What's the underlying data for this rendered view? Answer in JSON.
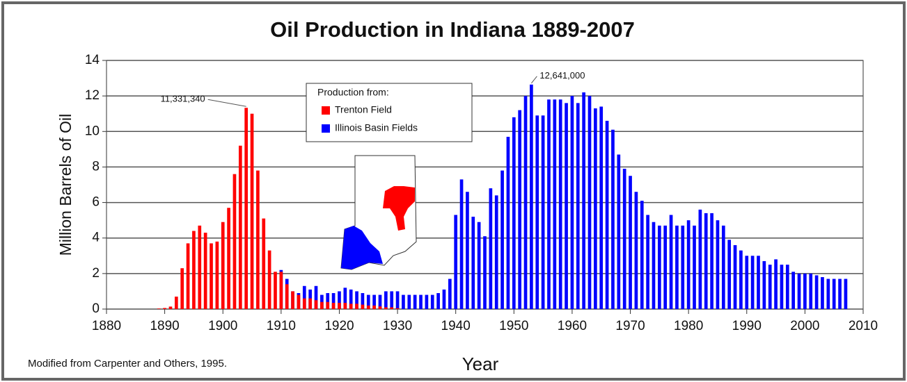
{
  "chart_data": {
    "type": "bar",
    "title": "Oil Production in Indiana 1889-2007",
    "x_label": "Year",
    "y_label": "Million Barrels of Oil",
    "source": "Modified from Carpenter and Others, 1995.",
    "legend_title": "Production from:",
    "legend": "top",
    "grid": true,
    "xlim": [
      1880,
      2010
    ],
    "xticks": [
      1880,
      1890,
      1900,
      1910,
      1920,
      1930,
      1940,
      1950,
      1960,
      1970,
      1980,
      1990,
      2000,
      2010
    ],
    "ylim": [
      0,
      14
    ],
    "yticks": [
      0,
      2,
      4,
      6,
      8,
      10,
      12,
      14
    ],
    "series": [
      {
        "name": "Illinois Basin Fields",
        "color": "#0000ff",
        "x": [
          1910,
          1911,
          1912,
          1913,
          1914,
          1915,
          1916,
          1917,
          1918,
          1919,
          1920,
          1921,
          1922,
          1923,
          1924,
          1925,
          1926,
          1927,
          1928,
          1929,
          1930,
          1931,
          1932,
          1933,
          1934,
          1935,
          1936,
          1937,
          1938,
          1939,
          1940,
          1941,
          1942,
          1943,
          1944,
          1945,
          1946,
          1947,
          1948,
          1949,
          1950,
          1951,
          1952,
          1953,
          1954,
          1955,
          1956,
          1957,
          1958,
          1959,
          1960,
          1961,
          1962,
          1963,
          1964,
          1965,
          1966,
          1967,
          1968,
          1969,
          1970,
          1971,
          1972,
          1973,
          1974,
          1975,
          1976,
          1977,
          1978,
          1979,
          1980,
          1981,
          1982,
          1983,
          1984,
          1985,
          1986,
          1987,
          1988,
          1989,
          1990,
          1991,
          1992,
          1993,
          1994,
          1995,
          1996,
          1997,
          1998,
          1999,
          2000,
          2001,
          2002,
          2003,
          2004,
          2005,
          2006,
          2007
        ],
        "values": [
          2.2,
          1.7,
          1.0,
          0.9,
          1.3,
          1.1,
          1.3,
          0.8,
          0.9,
          0.9,
          1.0,
          1.2,
          1.1,
          1.0,
          0.9,
          0.8,
          0.8,
          0.8,
          1.0,
          1.0,
          1.0,
          0.8,
          0.8,
          0.8,
          0.8,
          0.8,
          0.8,
          0.9,
          1.1,
          1.7,
          5.3,
          7.3,
          6.6,
          5.2,
          4.9,
          4.1,
          6.8,
          6.4,
          7.8,
          9.7,
          10.8,
          11.2,
          12.0,
          12.641,
          10.9,
          10.9,
          11.8,
          11.8,
          11.8,
          11.6,
          12.0,
          11.6,
          12.2,
          12.0,
          11.3,
          11.4,
          10.6,
          10.1,
          8.7,
          7.9,
          7.5,
          6.6,
          6.1,
          5.3,
          4.9,
          4.7,
          4.7,
          5.3,
          4.7,
          4.7,
          5.0,
          4.7,
          5.6,
          5.4,
          5.4,
          5.0,
          4.7,
          3.9,
          3.6,
          3.3,
          3.0,
          3.0,
          3.0,
          2.7,
          2.5,
          2.8,
          2.5,
          2.5,
          2.1,
          2.0,
          2.0,
          2.0,
          1.9,
          1.8,
          1.7,
          1.7,
          1.7,
          1.7
        ],
        "value_labels": [
          null,
          null,
          null,
          null,
          null,
          null,
          null,
          null,
          null,
          null,
          null,
          null,
          null,
          null,
          null,
          null,
          null,
          null,
          null,
          null,
          null,
          null,
          null,
          null,
          null,
          null,
          null,
          null,
          null,
          null,
          null,
          null,
          null,
          null,
          null,
          null,
          null,
          null,
          null,
          null,
          null,
          null,
          null,
          "12,641,000",
          null,
          null,
          null,
          null,
          null,
          null,
          null,
          null,
          null,
          null,
          null,
          null,
          null,
          null,
          null,
          null,
          null,
          null,
          null,
          null,
          null,
          null,
          null,
          null,
          null,
          null,
          null,
          null,
          null,
          null,
          null,
          null,
          null,
          null,
          null,
          null,
          null,
          null,
          null,
          null,
          null,
          null,
          null,
          null,
          null,
          null,
          null,
          null,
          null,
          null,
          null,
          null,
          null,
          null
        ]
      },
      {
        "name": "Trenton Field",
        "color": "#ff0000",
        "x": [
          1889,
          1890,
          1891,
          1892,
          1893,
          1894,
          1895,
          1896,
          1897,
          1898,
          1899,
          1900,
          1901,
          1902,
          1903,
          1904,
          1905,
          1906,
          1907,
          1908,
          1909,
          1910,
          1911,
          1912,
          1913,
          1914,
          1915,
          1916,
          1917,
          1918,
          1919,
          1920,
          1921,
          1922,
          1923,
          1924,
          1925,
          1926,
          1927,
          1928,
          1929,
          1930
        ],
        "values": [
          0.03,
          0.06,
          0.14,
          0.7,
          2.3,
          3.7,
          4.4,
          4.7,
          4.3,
          3.7,
          3.8,
          4.9,
          5.7,
          7.6,
          9.2,
          11.33134,
          11.0,
          7.8,
          5.1,
          3.3,
          2.1,
          2.1,
          1.4,
          1.0,
          0.8,
          0.6,
          0.6,
          0.5,
          0.4,
          0.4,
          0.35,
          0.35,
          0.35,
          0.3,
          0.3,
          0.25,
          0.2,
          0.2,
          0.15,
          0.1,
          0.1,
          0.05
        ],
        "value_labels": [
          null,
          null,
          null,
          null,
          null,
          null,
          null,
          null,
          null,
          null,
          null,
          null,
          null,
          null,
          null,
          "11,331,340",
          null,
          null,
          null,
          null,
          null,
          null,
          null,
          null,
          null,
          null,
          null,
          null,
          null,
          null,
          null,
          null,
          null,
          null,
          null,
          null,
          null,
          null,
          null,
          null,
          null,
          null
        ]
      }
    ]
  }
}
